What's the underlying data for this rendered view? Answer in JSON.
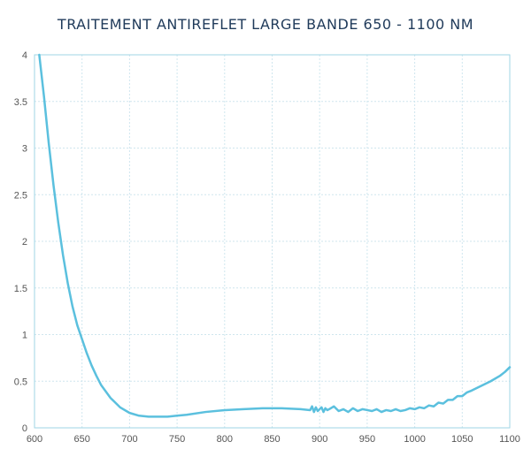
{
  "chart_data": {
    "type": "line",
    "title": "TRAITEMENT ANTIREFLET LARGE BANDE 650 - 1100 NM",
    "xlabel": "",
    "ylabel": "",
    "xlim": [
      600,
      1100
    ],
    "ylim": [
      0,
      4
    ],
    "x_ticks": [
      600,
      650,
      700,
      750,
      800,
      850,
      900,
      950,
      1000,
      1050,
      1100
    ],
    "y_ticks": [
      0,
      0.5,
      1,
      1.5,
      2,
      2.5,
      3,
      3.5,
      4
    ],
    "y_tick_labels": [
      "0",
      "0.5",
      "1",
      "1.5",
      "2",
      "2.5",
      "3",
      "3.5",
      "4"
    ],
    "grid": true,
    "line_color": "#5bc0de",
    "grid_color": "#cfe6ee",
    "axis_color": "#9fd6e6",
    "series": [
      {
        "x": [
          605,
          610,
          615,
          620,
          625,
          630,
          635,
          640,
          645,
          650,
          655,
          660,
          665,
          670,
          680,
          690,
          700,
          710,
          720,
          730,
          740,
          750,
          760,
          780,
          800,
          820,
          840,
          860,
          880,
          890,
          892,
          894,
          896,
          898,
          900,
          902,
          904,
          906,
          908,
          910,
          915,
          920,
          925,
          930,
          935,
          940,
          945,
          950,
          955,
          960,
          965,
          970,
          975,
          980,
          985,
          990,
          995,
          1000,
          1005,
          1010,
          1015,
          1020,
          1025,
          1030,
          1035,
          1040,
          1045,
          1050,
          1055,
          1060,
          1070,
          1080,
          1090,
          1095,
          1100
        ],
        "y": [
          4.0,
          3.55,
          3.05,
          2.6,
          2.2,
          1.85,
          1.55,
          1.3,
          1.1,
          0.95,
          0.8,
          0.67,
          0.56,
          0.46,
          0.32,
          0.22,
          0.16,
          0.13,
          0.12,
          0.12,
          0.12,
          0.13,
          0.14,
          0.17,
          0.19,
          0.2,
          0.21,
          0.21,
          0.2,
          0.19,
          0.23,
          0.17,
          0.22,
          0.18,
          0.2,
          0.22,
          0.17,
          0.21,
          0.19,
          0.2,
          0.23,
          0.18,
          0.2,
          0.17,
          0.21,
          0.18,
          0.2,
          0.19,
          0.18,
          0.2,
          0.17,
          0.19,
          0.18,
          0.2,
          0.18,
          0.19,
          0.21,
          0.2,
          0.22,
          0.21,
          0.24,
          0.23,
          0.27,
          0.26,
          0.3,
          0.3,
          0.34,
          0.34,
          0.38,
          0.4,
          0.45,
          0.5,
          0.56,
          0.6,
          0.65
        ]
      }
    ]
  }
}
